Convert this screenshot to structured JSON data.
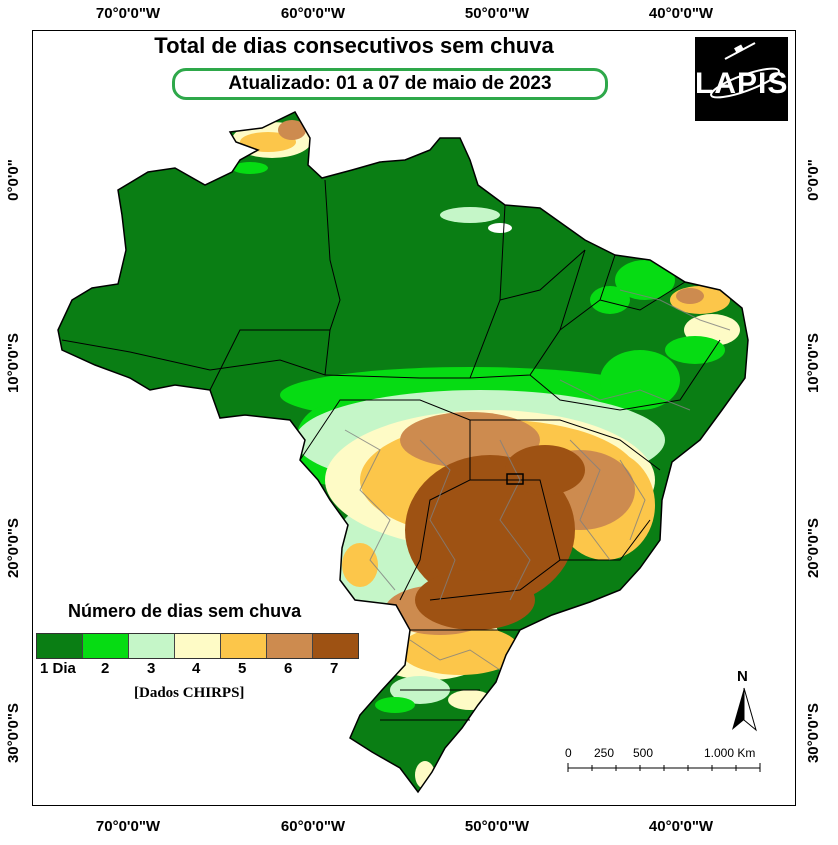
{
  "map": {
    "title": "Total de dias consecutivos sem chuva",
    "subtitle": "Atualizado: 01 a 07 de maio de 2023",
    "logo_text": "LAPIS",
    "logo_icon": "satellite-icon",
    "longitude_labels": [
      "70°0'0\"W",
      "60°0'0\"W",
      "50°0'0\"W",
      "40°0'0\"W"
    ],
    "latitude_labels": [
      "0°0'0\"",
      "10°0'0\"S",
      "20°0'0\"S",
      "30°0'0\"S"
    ],
    "north_label": "N",
    "scale": {
      "labels": [
        "0",
        "250",
        "500",
        "1.000 Km"
      ]
    }
  },
  "legend": {
    "title": "Número de dias sem chuva",
    "source": "[Dados CHIRPS]",
    "items": [
      {
        "label": "1 Dia",
        "color": "#0a7e14"
      },
      {
        "label": "2",
        "color": "#06dc13"
      },
      {
        "label": "3",
        "color": "#c5f6c8"
      },
      {
        "label": "4",
        "color": "#fefbc6"
      },
      {
        "label": "5",
        "color": "#fcc64a"
      },
      {
        "label": "6",
        "color": "#cd8b4f"
      },
      {
        "label": "7",
        "color": "#9e5213"
      }
    ]
  }
}
